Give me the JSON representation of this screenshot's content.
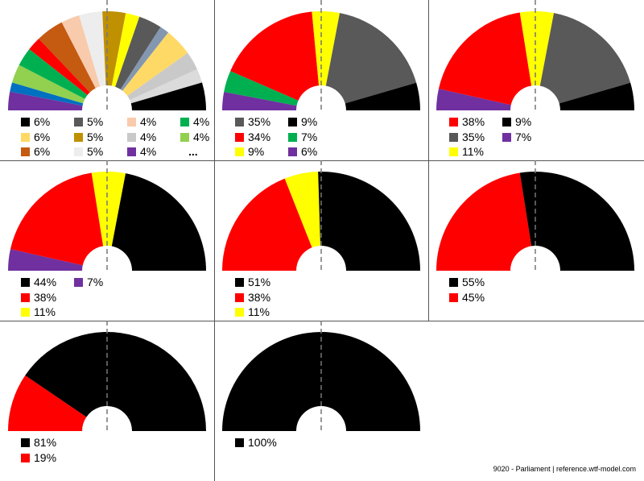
{
  "chart_data": [
    {
      "type": "pie",
      "subtype": "semicircle",
      "slices": [
        {
          "color": "#7030A0",
          "value": 4,
          "label": "4%"
        },
        {
          "color": "#0070C0",
          "value": 2
        },
        {
          "color": "#92D050",
          "value": 4,
          "label": "4%"
        },
        {
          "color": "#00B050",
          "value": 4,
          "label": "4%"
        },
        {
          "color": "#FF0000",
          "value": 3
        },
        {
          "color": "#C55A11",
          "value": 6,
          "label": "6%"
        },
        {
          "color": "#F8CBAD",
          "value": 4,
          "label": "4%"
        },
        {
          "color": "#EDEDED",
          "value": 5,
          "label": "5%"
        },
        {
          "color": "#BF9000",
          "value": 5,
          "label": "5%"
        },
        {
          "color": "#FFFF00",
          "value": 3
        },
        {
          "color": "#595959",
          "value": 5,
          "label": "5%"
        },
        {
          "color": "#8497B0",
          "value": 2
        },
        {
          "color": "#FFD966",
          "value": 6,
          "label": "6%"
        },
        {
          "color": "#C9C9C9",
          "value": 4,
          "label": "4%"
        },
        {
          "color": "#DBDBDB",
          "value": 3
        },
        {
          "color": "#000000",
          "value": 6,
          "label": "6%"
        }
      ],
      "legend": [
        {
          "color": "#000000",
          "label": "6%"
        },
        {
          "color": "#FFD966",
          "label": "6%"
        },
        {
          "color": "#C55A11",
          "label": "6%"
        },
        {
          "color": "#595959",
          "label": "5%"
        },
        {
          "color": "#BF9000",
          "label": "5%"
        },
        {
          "color": "#EDEDED",
          "label": "5%"
        },
        {
          "color": "#F8CBAD",
          "label": "4%"
        },
        {
          "color": "#C9C9C9",
          "label": "4%"
        },
        {
          "color": "#7030A0",
          "label": "4%"
        },
        {
          "color": "#00B050",
          "label": "4%"
        },
        {
          "color": "#92D050",
          "label": "4%"
        },
        {
          "color": "",
          "label": "..."
        }
      ]
    },
    {
      "type": "pie",
      "subtype": "semicircle",
      "slices": [
        {
          "color": "#7030A0",
          "value": 6
        },
        {
          "color": "#00B050",
          "value": 7
        },
        {
          "color": "#FF0000",
          "value": 34
        },
        {
          "color": "#FFFF00",
          "value": 9
        },
        {
          "color": "#595959",
          "value": 35
        },
        {
          "color": "#000000",
          "value": 9
        }
      ],
      "legend": [
        {
          "color": "#595959",
          "label": "35%"
        },
        {
          "color": "#FF0000",
          "label": "34%"
        },
        {
          "color": "#FFFF00",
          "label": "9%"
        },
        {
          "color": "#000000",
          "label": "9%"
        },
        {
          "color": "#00B050",
          "label": "7%"
        },
        {
          "color": "#7030A0",
          "label": "6%"
        }
      ]
    },
    {
      "type": "pie",
      "subtype": "semicircle",
      "slices": [
        {
          "color": "#7030A0",
          "value": 7
        },
        {
          "color": "#FF0000",
          "value": 38
        },
        {
          "color": "#FFFF00",
          "value": 11
        },
        {
          "color": "#595959",
          "value": 35
        },
        {
          "color": "#000000",
          "value": 9
        }
      ],
      "legend": [
        {
          "color": "#FF0000",
          "label": "38%"
        },
        {
          "color": "#595959",
          "label": "35%"
        },
        {
          "color": "#FFFF00",
          "label": "11%"
        },
        {
          "color": "#000000",
          "label": "9%"
        },
        {
          "color": "#7030A0",
          "label": "7%"
        }
      ]
    },
    {
      "type": "pie",
      "subtype": "semicircle",
      "slices": [
        {
          "color": "#7030A0",
          "value": 7
        },
        {
          "color": "#FF0000",
          "value": 38
        },
        {
          "color": "#FFFF00",
          "value": 11
        },
        {
          "color": "#000000",
          "value": 44
        }
      ],
      "legend": [
        {
          "color": "#000000",
          "label": "44%"
        },
        {
          "color": "#FF0000",
          "label": "38%"
        },
        {
          "color": "#FFFF00",
          "label": "11%"
        },
        {
          "color": "#7030A0",
          "label": "7%"
        }
      ]
    },
    {
      "type": "pie",
      "subtype": "semicircle",
      "slices": [
        {
          "color": "#FF0000",
          "value": 38
        },
        {
          "color": "#FFFF00",
          "value": 11
        },
        {
          "color": "#000000",
          "value": 51
        }
      ],
      "legend": [
        {
          "color": "#000000",
          "label": "51%"
        },
        {
          "color": "#FF0000",
          "label": "38%"
        },
        {
          "color": "#FFFF00",
          "label": "11%"
        }
      ]
    },
    {
      "type": "pie",
      "subtype": "semicircle",
      "slices": [
        {
          "color": "#FF0000",
          "value": 45
        },
        {
          "color": "#000000",
          "value": 55
        }
      ],
      "legend": [
        {
          "color": "#000000",
          "label": "55%"
        },
        {
          "color": "#FF0000",
          "label": "45%"
        }
      ]
    },
    {
      "type": "pie",
      "subtype": "semicircle",
      "slices": [
        {
          "color": "#FF0000",
          "value": 19
        },
        {
          "color": "#000000",
          "value": 81
        }
      ],
      "legend": [
        {
          "color": "#000000",
          "label": "81%"
        },
        {
          "color": "#FF0000",
          "label": "19%"
        }
      ]
    },
    {
      "type": "pie",
      "subtype": "semicircle",
      "slices": [
        {
          "color": "#000000",
          "value": 100
        }
      ],
      "legend": [
        {
          "color": "#000000",
          "label": "100%"
        }
      ]
    }
  ],
  "footer": "9020 - Parliament | reference.wtf-model.com"
}
